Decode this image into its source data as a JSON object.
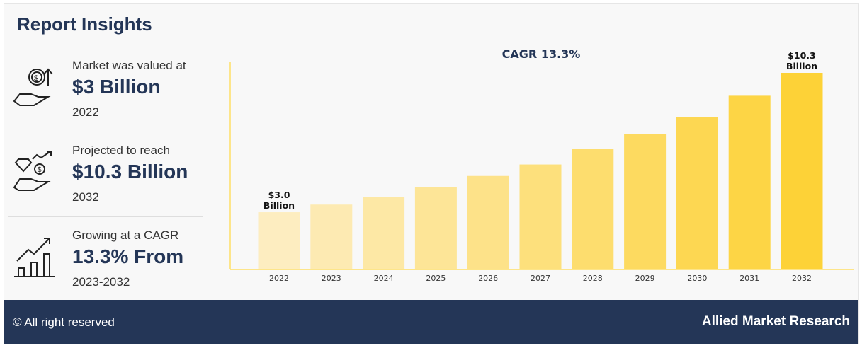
{
  "header": {
    "title": "Report Insights"
  },
  "stats": [
    {
      "label": "Market was valued at",
      "value": "$3 Billion",
      "sub": "2022",
      "icon": "hand-coin-icon"
    },
    {
      "label": "Projected to reach",
      "value": "$10.3 Billion",
      "sub": "2032",
      "icon": "hand-diamond-icon"
    },
    {
      "label": "Growing at a CAGR",
      "value": "13.3% From",
      "sub": "2023-2032",
      "icon": "growth-chart-icon"
    }
  ],
  "chart_data": {
    "type": "bar",
    "title": "CAGR 13.3%",
    "categories": [
      "2022",
      "2023",
      "2024",
      "2025",
      "2026",
      "2027",
      "2028",
      "2029",
      "2030",
      "2031",
      "2032"
    ],
    "values": [
      3.0,
      3.4,
      3.8,
      4.3,
      4.9,
      5.5,
      6.3,
      7.1,
      8.0,
      9.1,
      10.3
    ],
    "data_labels": {
      "first": [
        "$3.0",
        "Billion"
      ],
      "last": [
        "$10.3",
        "Billion"
      ]
    },
    "xlabel": "",
    "ylabel": "",
    "ylim": [
      0,
      10.3
    ],
    "unit": "USD Billion",
    "colors": {
      "start": "#fdedc0",
      "end": "#fdd237",
      "axis": "#fde58a",
      "title": "#243657"
    }
  },
  "footer": {
    "copyright": "© All right reserved",
    "brand": "Allied Market Research"
  }
}
